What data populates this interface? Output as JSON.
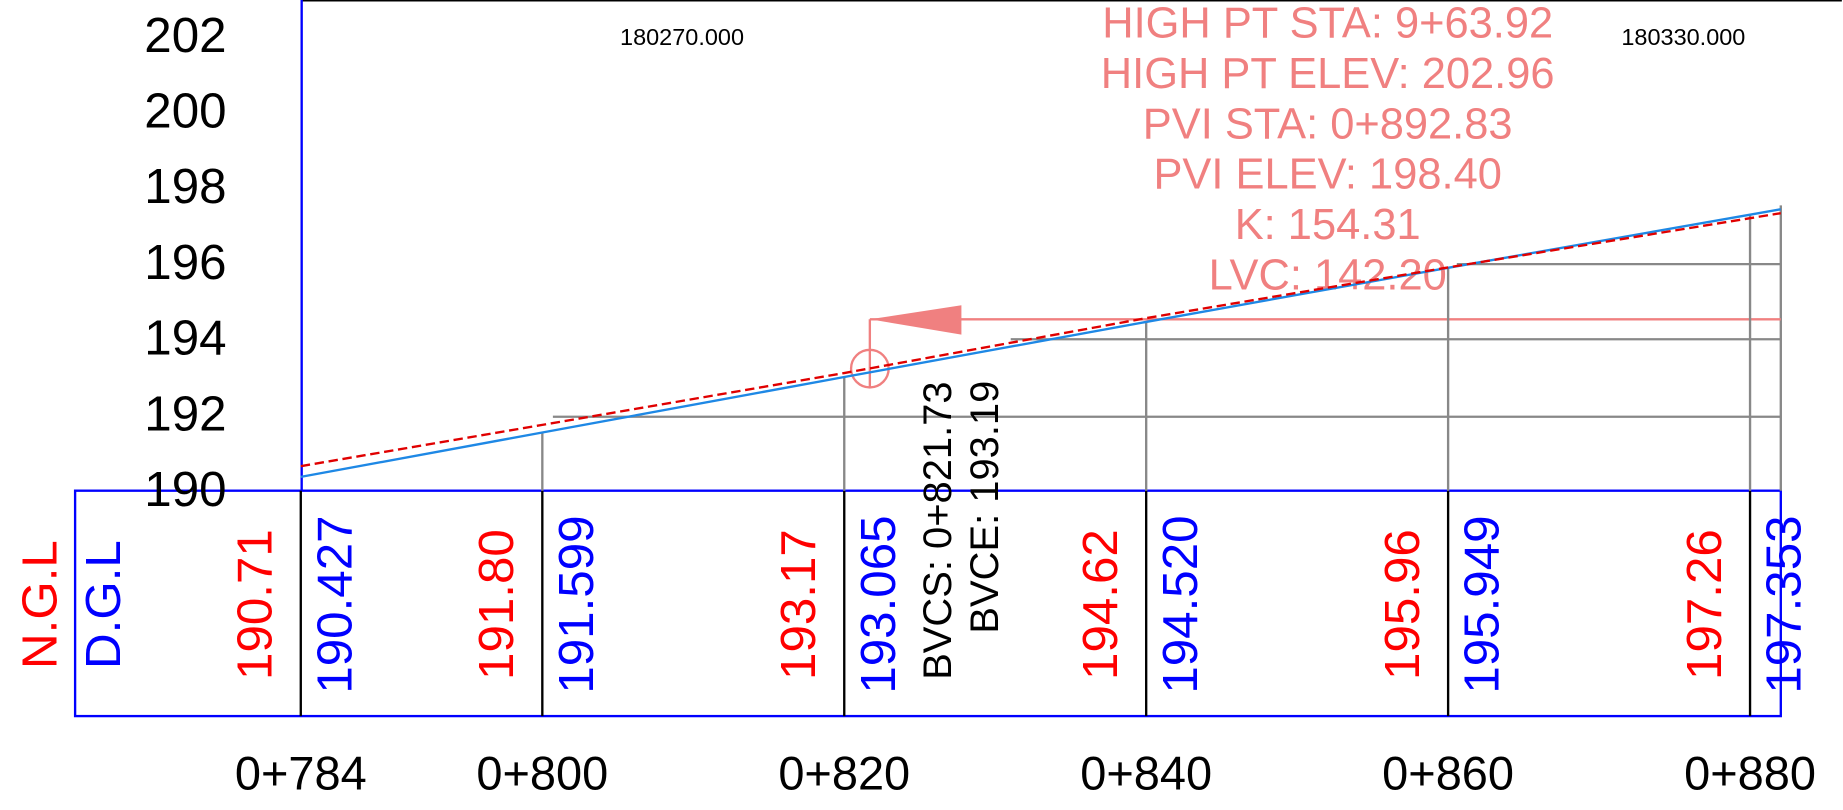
{
  "elevation_axis": [
    "202",
    "200",
    "198",
    "196",
    "194",
    "192",
    "190"
  ],
  "coordinates": [
    "180270.000",
    "180330.000"
  ],
  "curve_info": [
    "HIGH  PT  STA:  9+63.92",
    "HIGH  PT  ELEV:  202.96",
    "PVI  STA: 0+892.83",
    "PVI  ELEV: 198.40",
    "K: 154.31",
    "LVC: 142.20"
  ],
  "bvc": [
    "BVCS: 0+821.73",
    "BVCE: 193.19"
  ],
  "row_labels": {
    "ngl": "N.G.L",
    "dgl": "D.G.L"
  },
  "stations": [
    "0+784",
    "0+800",
    "0+820",
    "0+840",
    "0+860",
    "0+880"
  ],
  "ngl": [
    "190.71",
    "191.80",
    "193.17",
    "194.62",
    "195.96",
    "197.26"
  ],
  "dgl": [
    "190.427",
    "191.599",
    "193.065",
    "194.520",
    "195.949",
    "197.353"
  ]
}
